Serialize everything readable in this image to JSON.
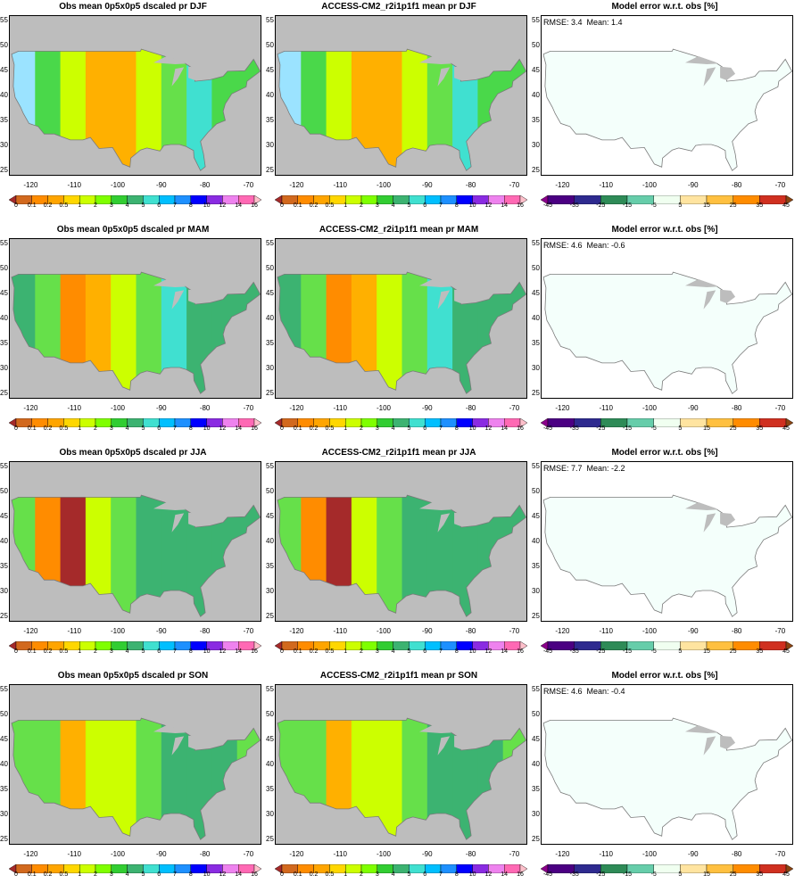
{
  "rows": [
    {
      "season": "DJF",
      "panels": [
        {
          "title": "Obs mean 0p5x0p5 dscaled pr DJF",
          "kind": "mean",
          "stats": ""
        },
        {
          "title": "ACCESS-CM2_r2i1p1f1 mean pr DJF",
          "kind": "mean",
          "stats": ""
        },
        {
          "title": "Model error w.r.t. obs [%]",
          "kind": "error",
          "stats": "RMSE: 3.4  Mean: 1.4"
        }
      ]
    },
    {
      "season": "MAM",
      "panels": [
        {
          "title": "Obs mean 0p5x0p5 dscaled pr MAM",
          "kind": "mean",
          "stats": ""
        },
        {
          "title": "ACCESS-CM2_r2i1p1f1 mean pr MAM",
          "kind": "mean",
          "stats": ""
        },
        {
          "title": "Model error w.r.t. obs [%]",
          "kind": "error",
          "stats": "RMSE: 4.6  Mean: -0.6"
        }
      ]
    },
    {
      "season": "JJA",
      "panels": [
        {
          "title": "Obs mean 0p5x0p5 dscaled pr JJA",
          "kind": "mean",
          "stats": ""
        },
        {
          "title": "ACCESS-CM2_r2i1p1f1 mean pr JJA",
          "kind": "mean",
          "stats": ""
        },
        {
          "title": "Model error w.r.t. obs [%]",
          "kind": "error",
          "stats": "RMSE: 7.7  Mean: -2.2"
        }
      ]
    },
    {
      "season": "SON",
      "panels": [
        {
          "title": "Obs mean 0p5x0p5 dscaled pr SON",
          "kind": "mean",
          "stats": ""
        },
        {
          "title": "ACCESS-CM2_r2i1p1f1 mean pr SON",
          "kind": "mean",
          "stats": ""
        },
        {
          "title": "Model error w.r.t. obs [%]",
          "kind": "error",
          "stats": "RMSE: 4.6  Mean: -0.4"
        }
      ]
    }
  ],
  "axes": {
    "lat_ticks": [
      "55",
      "50",
      "45",
      "40",
      "35",
      "30",
      "25"
    ],
    "lon_ticks": [
      "-120",
      "-110",
      "-100",
      "-90",
      "-80",
      "-70"
    ]
  },
  "colorbars": {
    "mean": {
      "labels": [
        "0",
        "0.1",
        "0.2",
        "0.5",
        "1",
        "2",
        "3",
        "4",
        "5",
        "6",
        "7",
        "8",
        "10",
        "12",
        "14",
        "16"
      ],
      "colors": [
        "#a52a2a",
        "#d2691e",
        "#ff8c00",
        "#ffa500",
        "#ffd700",
        "#ccff00",
        "#7fff00",
        "#32cd32",
        "#3cb371",
        "#40e0d0",
        "#00bfff",
        "#1e90ff",
        "#0000ff",
        "#8a2be2",
        "#ee82ee",
        "#ff69b4",
        "#ffc0cb"
      ]
    },
    "error": {
      "labels": [
        "-45",
        "-35",
        "-25",
        "-15",
        "-5",
        "5",
        "15",
        "25",
        "35",
        "45"
      ],
      "colors": [
        "#8b008b",
        "#4b0082",
        "#2e2a8f",
        "#2e8b57",
        "#66cdaa",
        "#f0fff0",
        "#ffe4a0",
        "#ffc040",
        "#ff8c00",
        "#d03020",
        "#8b4513"
      ]
    }
  },
  "map_colors": {
    "ocean": "#bdbdbd",
    "error_land": "#f4fffb",
    "state_lines": "#7a7a7a"
  }
}
